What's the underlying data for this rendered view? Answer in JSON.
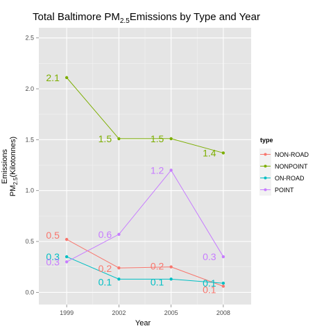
{
  "chart_data": {
    "type": "line",
    "title": "Total Baltimore PM",
    "title_sub": "2.5",
    "title_suffix": "Emissions by Type and Year",
    "xlabel": "Year",
    "ylabel_line1": "Emissions",
    "ylabel_line2_prefix": "PM",
    "ylabel_line2_sub": "2.5",
    "ylabel_line2_suffix": "(Kilotonnes)",
    "x": [
      1999,
      2002,
      2005,
      2008
    ],
    "x_tick_labels": [
      "1999",
      "2002",
      "2005",
      "2008"
    ],
    "ylim": [
      -0.12,
      2.6
    ],
    "y_ticks": [
      0.0,
      0.5,
      1.0,
      1.5,
      2.0,
      2.5
    ],
    "y_tick_labels": [
      "0.0",
      "0.5",
      "1.0",
      "1.5",
      "2.0",
      "2.5"
    ],
    "grid": true,
    "legend_position": "right",
    "legend_title": "type",
    "series": [
      {
        "name": "NON-ROAD",
        "color": "#F8766D",
        "values": [
          0.52,
          0.24,
          0.25,
          0.06
        ],
        "labels": [
          "0.5",
          "0.2",
          "0.2",
          "0.1"
        ]
      },
      {
        "name": "NONPOINT",
        "color": "#7CAE00",
        "values": [
          2.11,
          1.51,
          1.51,
          1.37
        ],
        "labels": [
          "2.1",
          "1.5",
          "1.5",
          "1.4"
        ]
      },
      {
        "name": "ON-ROAD",
        "color": "#00BFC4",
        "values": [
          0.35,
          0.13,
          0.13,
          0.09
        ],
        "labels": [
          "0.3",
          "0.1",
          "0.1",
          "0.1"
        ]
      },
      {
        "name": "POINT",
        "color": "#C77CFF",
        "values": [
          0.3,
          0.57,
          1.2,
          0.35
        ],
        "labels": [
          "0.3",
          "0.6",
          "1.2",
          "0.3"
        ]
      }
    ]
  }
}
